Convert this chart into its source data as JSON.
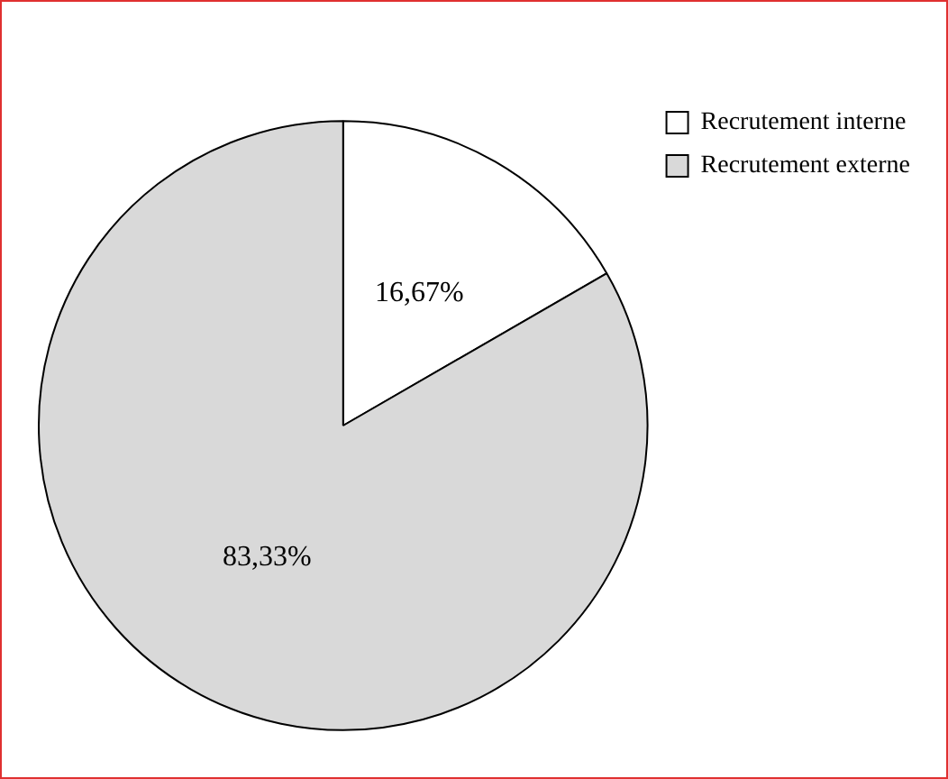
{
  "chart_data": {
    "type": "pie",
    "categories": [
      "Recrutement interne",
      "Recrutement externe"
    ],
    "values": [
      16.67,
      83.33
    ],
    "value_labels": [
      "16,67%",
      "83,33%"
    ],
    "colors": [
      "#ffffff",
      "#d9d9d9"
    ],
    "legend": "top right"
  }
}
